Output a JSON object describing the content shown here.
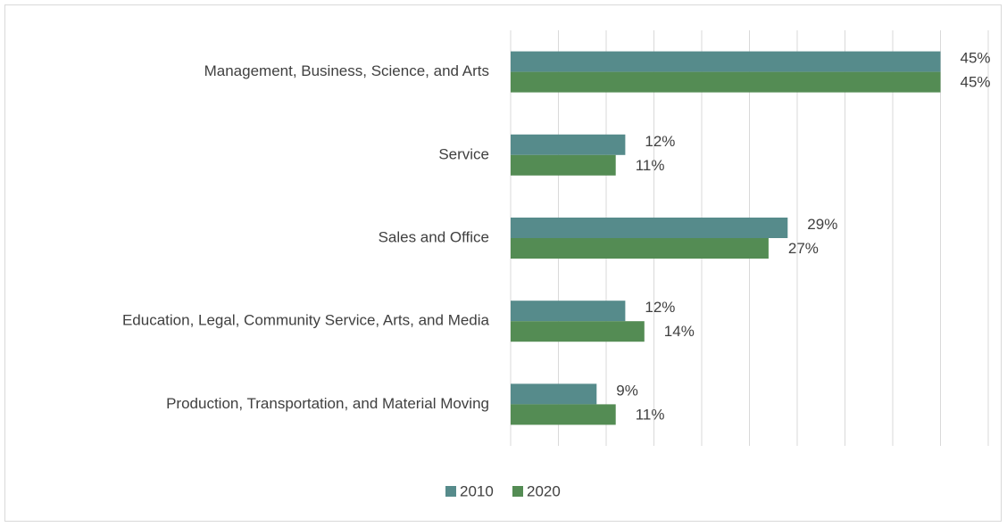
{
  "chart_data": {
    "type": "hbar",
    "categories": [
      "Management, Business, Science, and Arts",
      "Service",
      "Sales and Office",
      "Education, Legal, Community Service, Arts, and Media",
      "Production, Transportation, and Material Moving"
    ],
    "series": [
      {
        "name": "2010",
        "color": "#568b8b",
        "values": [
          45,
          12,
          29,
          12,
          9
        ],
        "value_labels": [
          "45%",
          "12%",
          "29%",
          "12%",
          "9%"
        ]
      },
      {
        "name": "2020",
        "color": "#548c54",
        "values": [
          45,
          11,
          27,
          14,
          11
        ],
        "value_labels": [
          "45%",
          "11%",
          "27%",
          "14%",
          "11%"
        ]
      }
    ],
    "xlim": [
      0,
      50
    ],
    "xticks": [
      0,
      5,
      10,
      15,
      20,
      25,
      30,
      35,
      40,
      45,
      50
    ],
    "grid": true,
    "legend": "bottom"
  }
}
